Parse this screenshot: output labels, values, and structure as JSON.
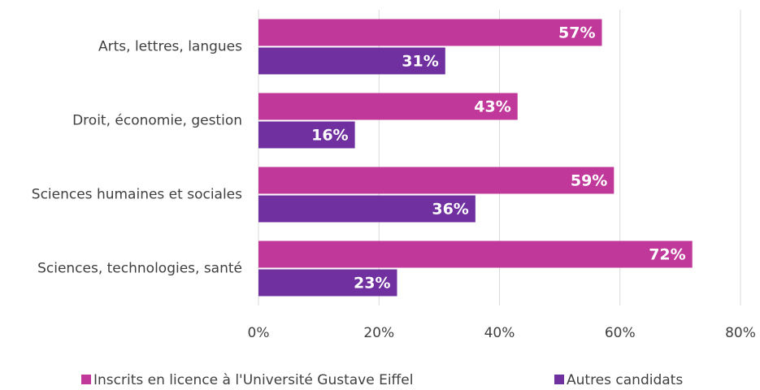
{
  "chart_data": {
    "type": "bar",
    "orientation": "horizontal",
    "categories": [
      "Arts, lettres, langues",
      "Droit, économie, gestion",
      "Sciences humaines et sociales",
      "Sciences, technologies, santé"
    ],
    "series": [
      {
        "name": "Inscrits en licence à l'Université Gustave Eiffel",
        "color": "#c0399a",
        "values": [
          57,
          43,
          59,
          72
        ],
        "value_labels": [
          "57%",
          "43%",
          "59%",
          "72%"
        ]
      },
      {
        "name": "Autres candidats",
        "color": "#7030a0",
        "values": [
          31,
          16,
          36,
          23
        ],
        "value_labels": [
          "31%",
          "16%",
          "36%",
          "23%"
        ]
      }
    ],
    "xlim": [
      0,
      80
    ],
    "xticks": [
      {
        "value": 0,
        "label": "0%"
      },
      {
        "value": 20,
        "label": "20%"
      },
      {
        "value": 40,
        "label": "40%"
      },
      {
        "value": 60,
        "label": "60%"
      },
      {
        "value": 80,
        "label": "80%"
      }
    ],
    "grid": true,
    "legend": "bottom"
  }
}
